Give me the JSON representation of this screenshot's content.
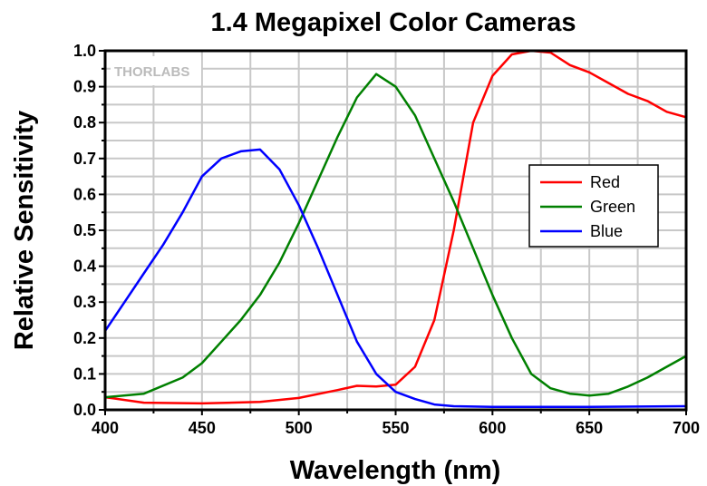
{
  "chart_data": {
    "type": "line",
    "title": "1.4 Megapixel Color Cameras",
    "xlabel": "Wavelength (nm)",
    "ylabel": "Relative Sensitivity",
    "xlim": [
      400,
      700
    ],
    "ylim": [
      0,
      1.0
    ],
    "xticks": [
      "400",
      "450",
      "500",
      "550",
      "600",
      "650",
      "700"
    ],
    "yticks": [
      "0.0",
      "0.1",
      "0.2",
      "0.3",
      "0.4",
      "0.5",
      "0.6",
      "0.7",
      "0.8",
      "0.9",
      "1.0"
    ],
    "grid": true,
    "legend_position": "right",
    "watermark": "THORLABS",
    "series": [
      {
        "name": "Red",
        "color": "#ff0000",
        "x": [
          400,
          420,
          450,
          480,
          500,
          520,
          530,
          540,
          550,
          560,
          570,
          580,
          590,
          600,
          610,
          620,
          630,
          640,
          650,
          660,
          670,
          680,
          690,
          700
        ],
        "y": [
          0.035,
          0.02,
          0.018,
          0.022,
          0.033,
          0.055,
          0.067,
          0.065,
          0.07,
          0.12,
          0.25,
          0.5,
          0.8,
          0.93,
          0.99,
          1.0,
          0.995,
          0.96,
          0.94,
          0.91,
          0.88,
          0.86,
          0.83,
          0.815
        ]
      },
      {
        "name": "Green",
        "color": "#008000",
        "x": [
          400,
          420,
          440,
          450,
          460,
          470,
          480,
          490,
          500,
          510,
          520,
          530,
          540,
          550,
          560,
          570,
          580,
          590,
          600,
          610,
          620,
          630,
          640,
          650,
          660,
          670,
          680,
          690,
          700
        ],
        "y": [
          0.035,
          0.045,
          0.09,
          0.13,
          0.19,
          0.25,
          0.32,
          0.41,
          0.52,
          0.64,
          0.76,
          0.87,
          0.935,
          0.9,
          0.82,
          0.7,
          0.58,
          0.45,
          0.32,
          0.2,
          0.1,
          0.06,
          0.045,
          0.04,
          0.045,
          0.065,
          0.09,
          0.12,
          0.15
        ]
      },
      {
        "name": "Blue",
        "color": "#0000ff",
        "x": [
          400,
          410,
          420,
          430,
          440,
          450,
          460,
          470,
          480,
          490,
          500,
          510,
          520,
          530,
          540,
          550,
          560,
          570,
          580,
          600,
          650,
          700
        ],
        "y": [
          0.22,
          0.3,
          0.38,
          0.46,
          0.55,
          0.65,
          0.7,
          0.72,
          0.725,
          0.67,
          0.57,
          0.45,
          0.32,
          0.19,
          0.1,
          0.05,
          0.03,
          0.015,
          0.01,
          0.008,
          0.008,
          0.01
        ]
      }
    ]
  }
}
